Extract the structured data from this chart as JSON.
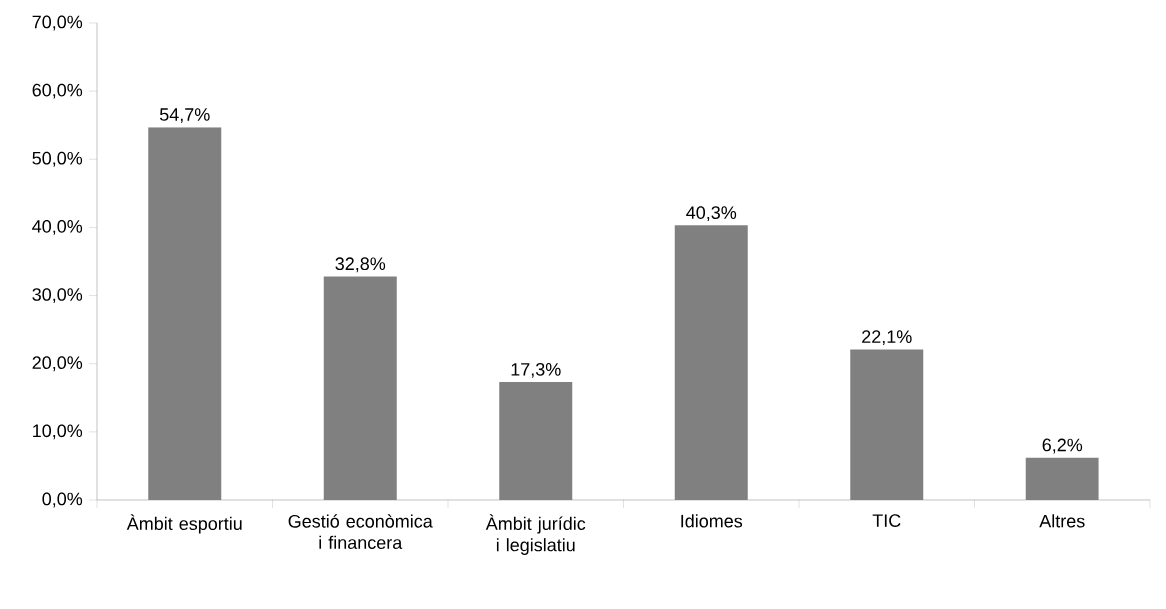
{
  "chart_data": {
    "type": "bar",
    "categories": [
      "Àmbit esportiu",
      "Gestió econòmica i financera",
      "Àmbit jurídic i legislatiu",
      "Idiomes",
      "TIC",
      "Altres"
    ],
    "values": [
      54.7,
      32.8,
      17.3,
      40.3,
      22.1,
      6.2
    ],
    "value_labels": [
      "54,7%",
      "32,8%",
      "17,3%",
      "40,3%",
      "22,1%",
      "6,2%"
    ],
    "color": "#808080",
    "ylim": [
      0,
      70
    ],
    "yticks": [
      {
        "value": 0,
        "label": "0,0%"
      },
      {
        "value": 10,
        "label": "10,0%"
      },
      {
        "value": 20,
        "label": "20,0%"
      },
      {
        "value": 30,
        "label": "30,0%"
      },
      {
        "value": 40,
        "label": "40,0%"
      },
      {
        "value": 50,
        "label": "50,0%"
      },
      {
        "value": 60,
        "label": "60,0%"
      },
      {
        "value": 70,
        "label": "70,0%"
      }
    ],
    "grid": false
  }
}
